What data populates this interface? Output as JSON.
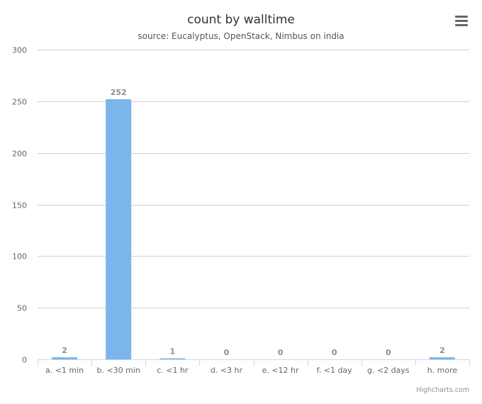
{
  "chart_data": {
    "type": "bar",
    "title": "count by walltime",
    "subtitle": "source: Eucalyptus, OpenStack, Nimbus on india",
    "categories": [
      "a. <1 min",
      "b. <30 min",
      "c. <1 hr",
      "d. <3 hr",
      "e. <12 hr",
      "f. <1 day",
      "g. <2 days",
      "h. more"
    ],
    "values": [
      2,
      252,
      1,
      0,
      0,
      0,
      0,
      2
    ],
    "data_labels": [
      "2",
      "252",
      "1",
      "0",
      "0",
      "0",
      "0",
      "2"
    ],
    "y_ticks": [
      "0",
      "50",
      "100",
      "150",
      "200",
      "250",
      "300"
    ],
    "ylim": [
      0,
      300
    ],
    "grid": true,
    "legend": "none",
    "bar_color": "#7cb5ec"
  },
  "credits": "Highcharts.com",
  "menu_icon": "hamburger-menu-icon"
}
